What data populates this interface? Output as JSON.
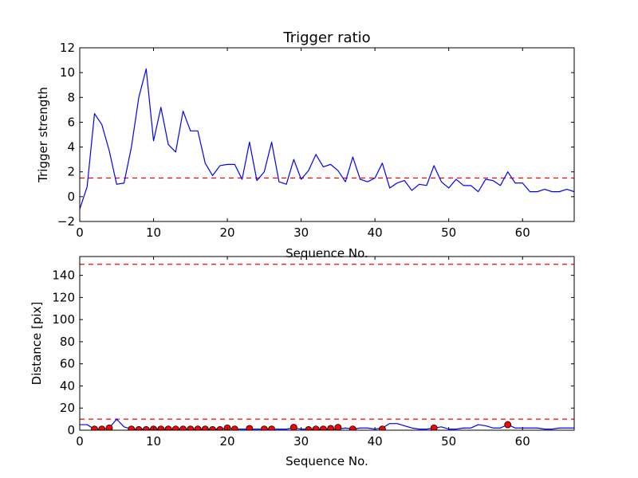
{
  "chart_data": [
    {
      "type": "line",
      "title": "Trigger ratio",
      "xlabel": "Sequence No.",
      "ylabel": "Trigger strength",
      "xlim": [
        0,
        67
      ],
      "ylim": [
        -2,
        12
      ],
      "xticks": [
        0,
        10,
        20,
        30,
        40,
        50,
        60
      ],
      "yticks": [
        -2,
        0,
        2,
        4,
        6,
        8,
        10,
        12
      ],
      "threshold": 1.5,
      "series_color": "#0000ff",
      "threshold_color": "#ff0000",
      "x": [
        0,
        1,
        2,
        3,
        4,
        5,
        6,
        7,
        8,
        9,
        10,
        11,
        12,
        13,
        14,
        15,
        16,
        17,
        18,
        19,
        20,
        21,
        22,
        23,
        24,
        25,
        26,
        27,
        28,
        29,
        30,
        31,
        32,
        33,
        34,
        35,
        36,
        37,
        38,
        39,
        40,
        41,
        42,
        43,
        44,
        45,
        46,
        47,
        48,
        49,
        50,
        51,
        52,
        53,
        54,
        55,
        56,
        57,
        58,
        59,
        60,
        61,
        62,
        63,
        64,
        65,
        66,
        67
      ],
      "y": [
        -1.0,
        0.8,
        6.7,
        5.8,
        3.7,
        1.0,
        1.1,
        4.0,
        8.0,
        10.3,
        4.5,
        7.2,
        4.2,
        3.6,
        6.9,
        5.3,
        5.3,
        2.7,
        1.7,
        2.5,
        2.6,
        2.6,
        1.4,
        4.4,
        1.3,
        2.0,
        4.4,
        1.2,
        1.0,
        3.0,
        1.4,
        2.1,
        3.4,
        2.4,
        2.6,
        2.1,
        1.2,
        3.2,
        1.4,
        1.2,
        1.5,
        2.7,
        0.7,
        1.1,
        1.3,
        0.5,
        1.0,
        0.9,
        2.5,
        1.2,
        0.7,
        1.4,
        0.9,
        0.9,
        0.4,
        1.4,
        1.3,
        0.9,
        2.0,
        1.1,
        1.1,
        0.4,
        0.4,
        0.6,
        0.4,
        0.4,
        0.6,
        0.4
      ]
    },
    {
      "type": "line",
      "title": "",
      "xlabel": "Sequence No.",
      "ylabel": "Distance [pix]",
      "xlim": [
        0,
        67
      ],
      "ylim": [
        0,
        157
      ],
      "xticks": [
        0,
        10,
        20,
        30,
        40,
        50,
        60
      ],
      "yticks": [
        0,
        20,
        40,
        60,
        80,
        100,
        120,
        140
      ],
      "thresholds": [
        150,
        10
      ],
      "series_color": "#0000ff",
      "threshold_color": "#ff0000",
      "marker_color": "#ff0000",
      "x": [
        0,
        1,
        2,
        3,
        4,
        5,
        6,
        7,
        8,
        9,
        10,
        11,
        12,
        13,
        14,
        15,
        16,
        17,
        18,
        19,
        20,
        21,
        22,
        23,
        24,
        25,
        26,
        27,
        28,
        29,
        30,
        31,
        32,
        33,
        34,
        35,
        36,
        37,
        38,
        39,
        40,
        41,
        42,
        43,
        44,
        45,
        46,
        47,
        48,
        49,
        50,
        51,
        52,
        53,
        54,
        55,
        56,
        57,
        58,
        59,
        60,
        61,
        62,
        63,
        64,
        65,
        66,
        67
      ],
      "y": [
        5,
        5,
        1,
        1,
        2,
        10,
        3,
        1,
        1,
        1,
        1,
        1,
        1,
        1,
        1,
        1,
        1,
        1,
        1,
        1,
        2,
        1,
        1,
        1,
        1,
        1,
        1,
        1,
        1,
        2,
        1,
        1,
        1,
        1,
        1,
        1,
        2,
        1,
        2,
        2,
        1,
        2,
        6,
        6,
        4,
        2,
        1,
        1,
        2,
        3,
        1,
        1,
        2,
        2,
        5,
        4,
        2,
        2,
        5,
        2,
        2,
        2,
        2,
        1,
        1,
        2,
        2,
        2
      ],
      "markers": {
        "x": [
          2,
          3,
          4,
          7,
          8,
          9,
          10,
          11,
          12,
          13,
          14,
          15,
          16,
          17,
          18,
          19,
          20,
          21,
          23,
          25,
          26,
          29,
          31,
          32,
          33,
          34,
          35,
          37,
          41,
          48,
          58
        ],
        "y": [
          1,
          1,
          2,
          1,
          0.5,
          0.5,
          1,
          1,
          1,
          1,
          1,
          1,
          1,
          1,
          0.5,
          0.5,
          2,
          1,
          1.5,
          1,
          1,
          2.5,
          0.5,
          1,
          1,
          1.5,
          2.5,
          1,
          1,
          2,
          5
        ]
      }
    }
  ]
}
